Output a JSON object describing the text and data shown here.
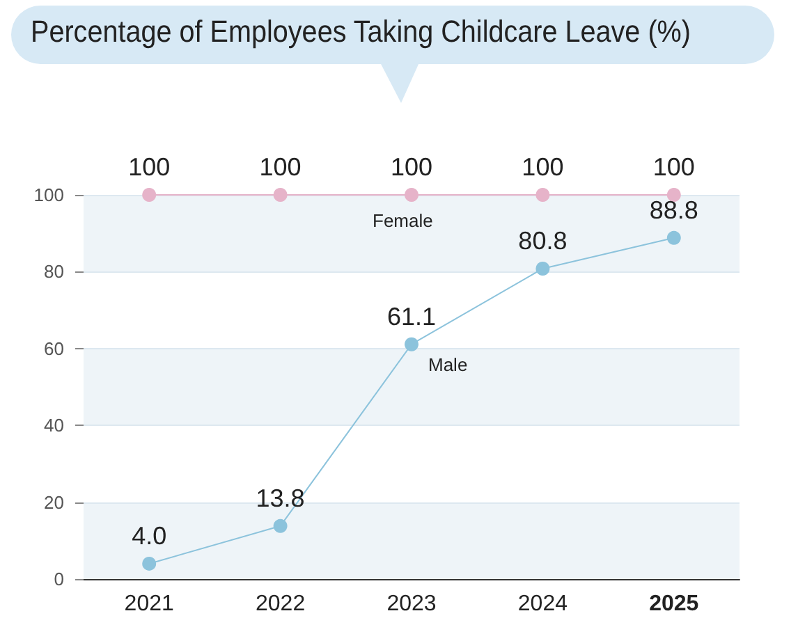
{
  "chart_data": {
    "type": "line",
    "title": "Percentage of Employees Taking Childcare Leave (%)",
    "categories": [
      "2021",
      "2022",
      "2023",
      "2024",
      "2025"
    ],
    "series": [
      {
        "name": "Female",
        "color": "#e6b3c9",
        "values": [
          100,
          100,
          100,
          100,
          100
        ]
      },
      {
        "name": "Male",
        "color": "#8cc3dc",
        "values": [
          4.0,
          13.8,
          61.1,
          80.8,
          88.8
        ]
      }
    ],
    "value_labels": [
      [
        "100",
        "100",
        "100",
        "100",
        "100"
      ],
      [
        "4.0",
        "13.8",
        "61.1",
        "80.8",
        "88.8"
      ]
    ],
    "ylim": [
      0,
      100
    ],
    "yticks": [
      0,
      20,
      40,
      60,
      80,
      100
    ],
    "grid": "y",
    "legend": false,
    "marker": "circle",
    "line_style": "solid"
  }
}
